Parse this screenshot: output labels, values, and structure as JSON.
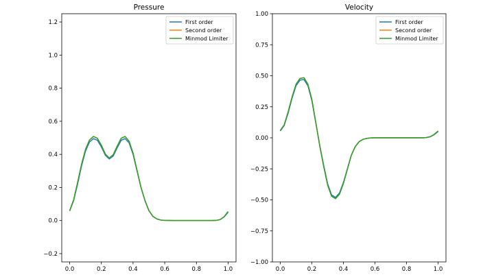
{
  "chart_data": [
    {
      "type": "line",
      "title": "Pressure",
      "xlabel": "",
      "ylabel": "",
      "xlim": [
        -0.05,
        1.05
      ],
      "ylim": [
        -0.25,
        1.25
      ],
      "xticks": [
        0.0,
        0.2,
        0.4,
        0.6,
        0.8,
        1.0
      ],
      "xtick_labels": [
        "0.0",
        "0.2",
        "0.4",
        "0.6",
        "0.8",
        "1.0"
      ],
      "yticks": [
        -0.2,
        0.0,
        0.2,
        0.4,
        0.6,
        0.8,
        1.0,
        1.2
      ],
      "ytick_labels": [
        "−0.2",
        "0.0",
        "0.2",
        "0.4",
        "0.6",
        "0.8",
        "1.0",
        "1.2"
      ],
      "grid": false,
      "legend": "top-right",
      "x": [
        0.0,
        0.025,
        0.05,
        0.075,
        0.1,
        0.125,
        0.15,
        0.175,
        0.2,
        0.225,
        0.25,
        0.275,
        0.3,
        0.325,
        0.35,
        0.375,
        0.4,
        0.425,
        0.45,
        0.475,
        0.5,
        0.525,
        0.55,
        0.575,
        0.6,
        0.65,
        0.7,
        0.75,
        0.8,
        0.85,
        0.9,
        0.925,
        0.95,
        0.975,
        1.0
      ],
      "series": [
        {
          "name": "First order",
          "color": "#1f77b4",
          "values": [
            0.058,
            0.12,
            0.22,
            0.33,
            0.42,
            0.475,
            0.495,
            0.485,
            0.445,
            0.395,
            0.372,
            0.39,
            0.44,
            0.485,
            0.495,
            0.47,
            0.4,
            0.3,
            0.2,
            0.12,
            0.06,
            0.025,
            0.01,
            0.003,
            0.001,
            0.0,
            0.0,
            0.0,
            0.0,
            0.0,
            0.0,
            0.001,
            0.006,
            0.022,
            0.05
          ]
        },
        {
          "name": "Second order",
          "color": "#ff7f0e",
          "values": [
            0.06,
            0.125,
            0.23,
            0.34,
            0.43,
            0.487,
            0.508,
            0.497,
            0.455,
            0.402,
            0.378,
            0.398,
            0.45,
            0.497,
            0.508,
            0.48,
            0.408,
            0.305,
            0.202,
            0.122,
            0.061,
            0.026,
            0.01,
            0.003,
            0.001,
            0.0,
            0.0,
            0.0,
            0.0,
            0.0,
            0.0,
            0.001,
            0.006,
            0.023,
            0.055
          ]
        },
        {
          "name": "Minmod Limiter",
          "color": "#2ca02c",
          "values": [
            0.06,
            0.125,
            0.23,
            0.34,
            0.43,
            0.487,
            0.508,
            0.497,
            0.455,
            0.402,
            0.378,
            0.398,
            0.45,
            0.497,
            0.508,
            0.48,
            0.408,
            0.305,
            0.202,
            0.122,
            0.061,
            0.026,
            0.01,
            0.003,
            0.001,
            0.0,
            0.0,
            0.0,
            0.0,
            0.0,
            0.0,
            0.001,
            0.006,
            0.023,
            0.055
          ]
        }
      ]
    },
    {
      "type": "line",
      "title": "Velocity",
      "xlabel": "",
      "ylabel": "",
      "xlim": [
        -0.05,
        1.05
      ],
      "ylim": [
        -1.0,
        1.0
      ],
      "xticks": [
        0.0,
        0.2,
        0.4,
        0.6,
        0.8,
        1.0
      ],
      "xtick_labels": [
        "0.0",
        "0.2",
        "0.4",
        "0.6",
        "0.8",
        "1.0"
      ],
      "yticks": [
        -1.0,
        -0.75,
        -0.5,
        -0.25,
        0.0,
        0.25,
        0.5,
        0.75,
        1.0
      ],
      "ytick_labels": [
        "−1.00",
        "−0.75",
        "−0.50",
        "−0.25",
        "0.00",
        "0.25",
        "0.50",
        "0.75",
        "1.00"
      ],
      "grid": false,
      "legend": "top-right",
      "x": [
        0.0,
        0.025,
        0.05,
        0.075,
        0.1,
        0.125,
        0.15,
        0.175,
        0.2,
        0.225,
        0.25,
        0.275,
        0.3,
        0.325,
        0.35,
        0.375,
        0.4,
        0.425,
        0.45,
        0.475,
        0.5,
        0.525,
        0.55,
        0.575,
        0.6,
        0.65,
        0.7,
        0.75,
        0.8,
        0.85,
        0.9,
        0.925,
        0.95,
        0.975,
        1.0
      ],
      "series": [
        {
          "name": "First order",
          "color": "#1f77b4",
          "values": [
            0.055,
            0.1,
            0.2,
            0.32,
            0.42,
            0.465,
            0.47,
            0.42,
            0.3,
            0.12,
            -0.06,
            -0.22,
            -0.37,
            -0.46,
            -0.48,
            -0.445,
            -0.36,
            -0.25,
            -0.14,
            -0.07,
            -0.03,
            -0.012,
            -0.004,
            -0.001,
            0.0,
            0.0,
            0.0,
            0.0,
            0.0,
            0.0,
            0.0,
            0.002,
            0.008,
            0.025,
            0.05
          ]
        },
        {
          "name": "Second order",
          "color": "#ff7f0e",
          "values": [
            0.06,
            0.105,
            0.21,
            0.33,
            0.432,
            0.478,
            0.485,
            0.432,
            0.31,
            0.125,
            -0.065,
            -0.23,
            -0.38,
            -0.47,
            -0.49,
            -0.455,
            -0.368,
            -0.255,
            -0.142,
            -0.071,
            -0.031,
            -0.012,
            -0.004,
            -0.001,
            0.0,
            0.0,
            0.0,
            0.0,
            0.0,
            0.0,
            0.0,
            0.002,
            0.009,
            0.027,
            0.055
          ]
        },
        {
          "name": "Minmod Limiter",
          "color": "#2ca02c",
          "values": [
            0.06,
            0.105,
            0.21,
            0.33,
            0.432,
            0.478,
            0.485,
            0.432,
            0.31,
            0.125,
            -0.065,
            -0.23,
            -0.38,
            -0.47,
            -0.49,
            -0.455,
            -0.368,
            -0.255,
            -0.142,
            -0.071,
            -0.031,
            -0.012,
            -0.004,
            -0.001,
            0.0,
            0.0,
            0.0,
            0.0,
            0.0,
            0.0,
            0.0,
            0.002,
            0.009,
            0.027,
            0.055
          ]
        }
      ]
    }
  ]
}
